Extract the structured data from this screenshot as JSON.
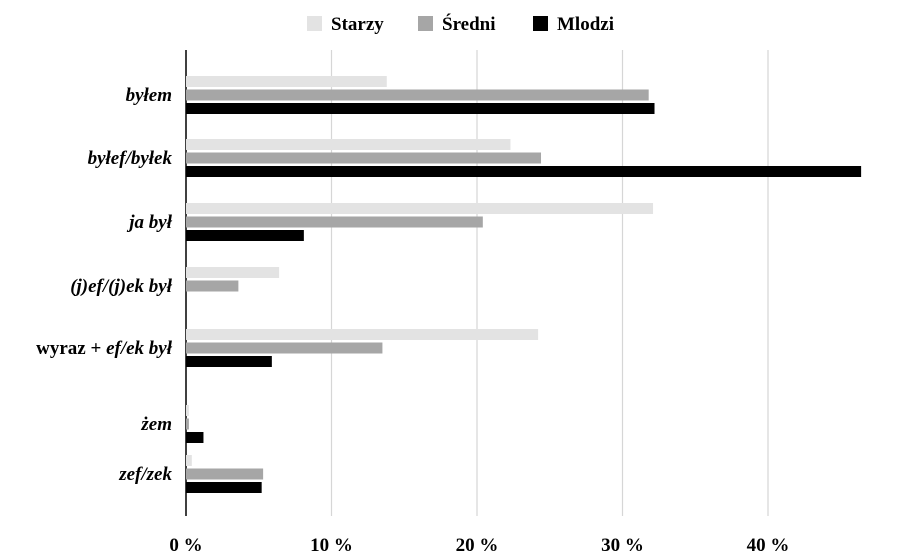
{
  "chart_data": {
    "type": "bar",
    "orientation": "horizontal",
    "categories": [
      {
        "parts": [
          {
            "text": "byłem",
            "italic": true
          }
        ]
      },
      {
        "parts": [
          {
            "text": "byłef/byłek",
            "italic": true
          }
        ]
      },
      {
        "parts": [
          {
            "text": "ja był",
            "italic": true
          }
        ]
      },
      {
        "parts": [
          {
            "text": "(j)ef/(j)ek był",
            "italic": true
          }
        ]
      },
      {
        "parts": [
          {
            "text": "wyraz + ",
            "italic": false
          },
          {
            "text": "ef/ek był",
            "italic": true
          }
        ]
      },
      {
        "parts": [
          {
            "text": "żem",
            "italic": true
          }
        ]
      },
      {
        "parts": [
          {
            "text": "zef/zek",
            "italic": true
          }
        ]
      }
    ],
    "series": [
      {
        "name": "Starzy",
        "color": "#e3e3e3",
        "values": [
          13.8,
          22.3,
          32.1,
          6.4,
          24.2,
          0.2,
          0.4
        ]
      },
      {
        "name": "Średni",
        "color": "#a6a6a6",
        "values": [
          31.8,
          24.4,
          20.4,
          3.6,
          13.5,
          0.2,
          5.3
        ]
      },
      {
        "name": "Mlodzi",
        "color": "#000000",
        "values": [
          32.2,
          46.4,
          8.1,
          0,
          5.9,
          1.2,
          5.2
        ]
      }
    ],
    "xticks": [
      "0 %",
      "10 %",
      "20 %",
      "30 %",
      "40 %"
    ],
    "xlim": [
      0,
      46.5
    ],
    "grid": true,
    "legend_position": "top-center"
  }
}
